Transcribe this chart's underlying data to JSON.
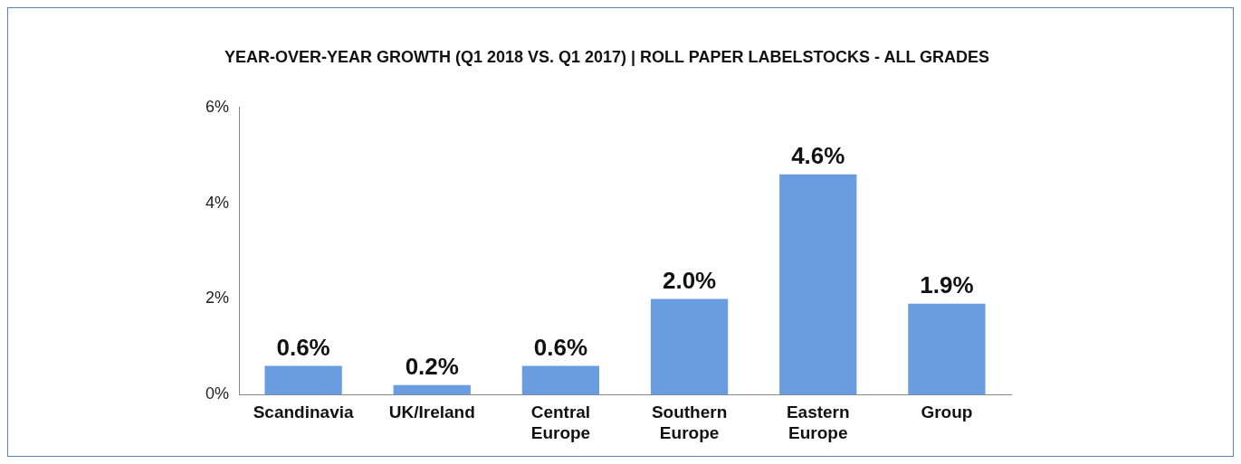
{
  "chart_data": {
    "type": "bar",
    "title": "YEAR-OVER-YEAR GROWTH (Q1 2018 VS. Q1 2017) | ROLL PAPER LABELSTOCKS - ALL GRADES",
    "categories": [
      "Scandinavia",
      "UK/Ireland",
      "Central Europe",
      "Southern Europe",
      "Eastern Europe",
      "Group"
    ],
    "values": [
      0.6,
      0.2,
      0.6,
      2.0,
      4.6,
      1.9
    ],
    "value_labels": [
      "0.6%",
      "0.2%",
      "0.6%",
      "2.0%",
      "4.6%",
      "1.9%"
    ],
    "color": "#6a9de0",
    "ylim": [
      0,
      6
    ],
    "yticks": [
      {
        "value": 0,
        "label": "0%"
      },
      {
        "value": 2,
        "label": "2%"
      },
      {
        "value": 4,
        "label": "4%"
      },
      {
        "value": 6,
        "label": "6%"
      }
    ],
    "grid": false,
    "legend": false
  }
}
